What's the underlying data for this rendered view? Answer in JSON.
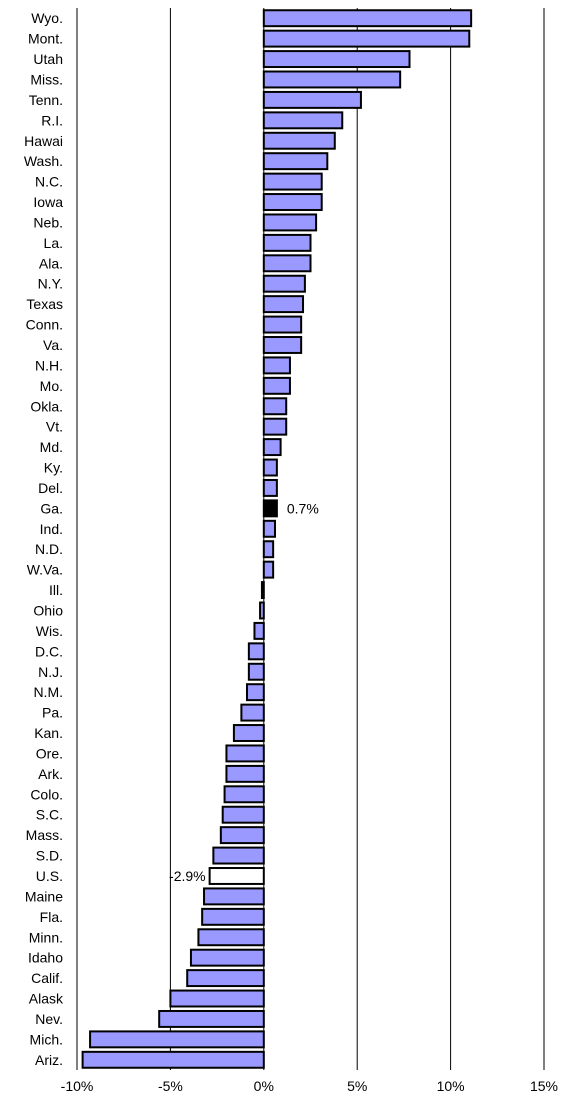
{
  "colors": {
    "bar": "#9999ff",
    "highlight": "#000000",
    "us": "#ffffff"
  },
  "chart_data": {
    "type": "bar",
    "orientation": "horizontal",
    "title": "",
    "xlabel": "",
    "ylabel": "",
    "xlim": [
      -10,
      15
    ],
    "x_ticks": [
      -10,
      -5,
      0,
      5,
      10,
      15
    ],
    "x_tick_labels": [
      "-10%",
      "-5%",
      "0%",
      "5%",
      "10%",
      "15%"
    ],
    "grid": "vertical",
    "categories": [
      "Wyo.",
      "Mont.",
      "Utah",
      "Miss.",
      "Tenn.",
      "R.I.",
      "Hawai",
      "Wash.",
      "N.C.",
      "Iowa",
      "Neb.",
      "La.",
      "Ala.",
      "N.Y.",
      "Texas",
      "Conn.",
      "Va.",
      "N.H.",
      "Mo.",
      "Okla.",
      "Vt.",
      "Md.",
      "Ky.",
      "Del.",
      "Ga.",
      "Ind.",
      "N.D.",
      "W.Va.",
      "Ill.",
      "Ohio",
      "Wis.",
      "D.C.",
      "N.J.",
      "N.M.",
      "Pa.",
      "Kan.",
      "Ore.",
      "Ark.",
      "Colo.",
      "S.C.",
      "Mass.",
      "S.D.",
      "U.S.",
      "Maine",
      "Fla.",
      "Minn.",
      "Idaho",
      "Calif.",
      "Alask",
      "Nev.",
      "Mich.",
      "Ariz."
    ],
    "values": [
      11.1,
      11.0,
      7.8,
      7.3,
      5.2,
      4.2,
      3.8,
      3.4,
      3.1,
      3.1,
      2.8,
      2.5,
      2.5,
      2.2,
      2.1,
      2.0,
      2.0,
      1.4,
      1.4,
      1.2,
      1.2,
      0.9,
      0.7,
      0.7,
      0.7,
      0.6,
      0.5,
      0.5,
      -0.1,
      -0.2,
      -0.5,
      -0.8,
      -0.8,
      -0.9,
      -1.2,
      -1.6,
      -2.0,
      -2.0,
      -2.1,
      -2.2,
      -2.3,
      -2.7,
      -2.9,
      -3.2,
      -3.3,
      -3.5,
      -3.9,
      -4.1,
      -5.0,
      -5.6,
      -9.3,
      -9.7
    ],
    "highlighted": [
      {
        "category": "Ga.",
        "color": "#000000",
        "label": "0.7%"
      },
      {
        "category": "U.S.",
        "color": "#ffffff",
        "label": "-2.9%"
      }
    ]
  }
}
